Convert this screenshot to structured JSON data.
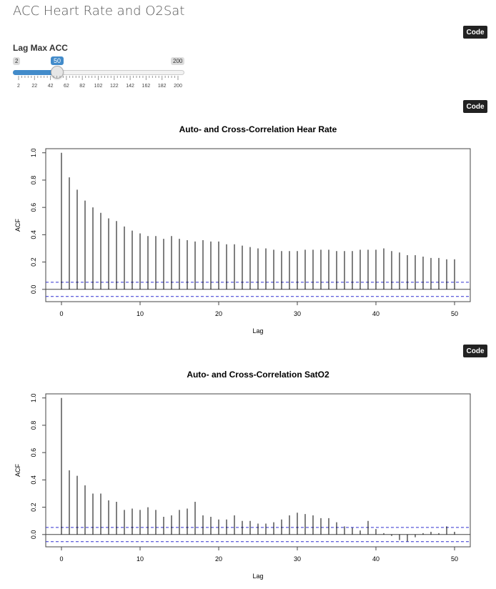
{
  "page": {
    "title": "ACC Heart Rate and O2Sat"
  },
  "code_buttons": [
    "Code",
    "Code",
    "Code"
  ],
  "slider": {
    "label": "Lag Max ACC",
    "min": 2,
    "max": 200,
    "value": 50,
    "min_label": "2",
    "max_label": "200",
    "value_label": "50",
    "ticks": [
      "2",
      "22",
      "42",
      "62",
      "82",
      "102",
      "122",
      "142",
      "162",
      "182",
      "200"
    ],
    "accent": "#428bca"
  },
  "chart_data": [
    {
      "type": "bar",
      "title": "Auto- and Cross-Correlation Hear Rate",
      "xlabel": "Lag",
      "ylabel": "ACF",
      "x_ticks": [
        0,
        10,
        20,
        30,
        40,
        50
      ],
      "y_ticks": [
        "0.0",
        "0.2",
        "0.4",
        "0.6",
        "0.8",
        "1.0"
      ],
      "xlim": [
        -2,
        52
      ],
      "ylim": [
        -0.09,
        1.03
      ],
      "ci": 0.052,
      "ci_color": "#3030d0",
      "lags": [
        0,
        1,
        2,
        3,
        4,
        5,
        6,
        7,
        8,
        9,
        10,
        11,
        12,
        13,
        14,
        15,
        16,
        17,
        18,
        19,
        20,
        21,
        22,
        23,
        24,
        25,
        26,
        27,
        28,
        29,
        30,
        31,
        32,
        33,
        34,
        35,
        36,
        37,
        38,
        39,
        40,
        41,
        42,
        43,
        44,
        45,
        46,
        47,
        48,
        49,
        50
      ],
      "values": [
        1.0,
        0.82,
        0.73,
        0.65,
        0.6,
        0.56,
        0.52,
        0.5,
        0.46,
        0.43,
        0.41,
        0.39,
        0.39,
        0.37,
        0.39,
        0.37,
        0.36,
        0.35,
        0.36,
        0.35,
        0.35,
        0.33,
        0.33,
        0.32,
        0.31,
        0.3,
        0.3,
        0.29,
        0.28,
        0.28,
        0.28,
        0.29,
        0.29,
        0.29,
        0.29,
        0.28,
        0.28,
        0.28,
        0.29,
        0.29,
        0.29,
        0.3,
        0.28,
        0.27,
        0.25,
        0.25,
        0.24,
        0.23,
        0.23,
        0.22,
        0.22
      ]
    },
    {
      "type": "bar",
      "title": "Auto- and Cross-Correlation SatO2",
      "xlabel": "Lag",
      "ylabel": "ACF",
      "x_ticks": [
        0,
        10,
        20,
        30,
        40,
        50
      ],
      "y_ticks": [
        "0.0",
        "0.2",
        "0.4",
        "0.6",
        "0.8",
        "1.0"
      ],
      "xlim": [
        -2,
        52
      ],
      "ylim": [
        -0.09,
        1.03
      ],
      "ci": 0.052,
      "ci_color": "#3030d0",
      "lags": [
        0,
        1,
        2,
        3,
        4,
        5,
        6,
        7,
        8,
        9,
        10,
        11,
        12,
        13,
        14,
        15,
        16,
        17,
        18,
        19,
        20,
        21,
        22,
        23,
        24,
        25,
        26,
        27,
        28,
        29,
        30,
        31,
        32,
        33,
        34,
        35,
        36,
        37,
        38,
        39,
        40,
        41,
        42,
        43,
        44,
        45,
        46,
        47,
        48,
        49,
        50
      ],
      "values": [
        1.0,
        0.47,
        0.43,
        0.36,
        0.3,
        0.3,
        0.25,
        0.24,
        0.18,
        0.19,
        0.18,
        0.2,
        0.18,
        0.13,
        0.14,
        0.18,
        0.19,
        0.24,
        0.14,
        0.13,
        0.11,
        0.11,
        0.14,
        0.1,
        0.1,
        0.08,
        0.08,
        0.09,
        0.11,
        0.14,
        0.16,
        0.15,
        0.14,
        0.12,
        0.12,
        0.09,
        0.06,
        0.05,
        0.03,
        0.1,
        0.04,
        0.01,
        -0.01,
        -0.04,
        -0.05,
        -0.02,
        0.01,
        0.02,
        0.01,
        0.06,
        0.02
      ]
    }
  ]
}
